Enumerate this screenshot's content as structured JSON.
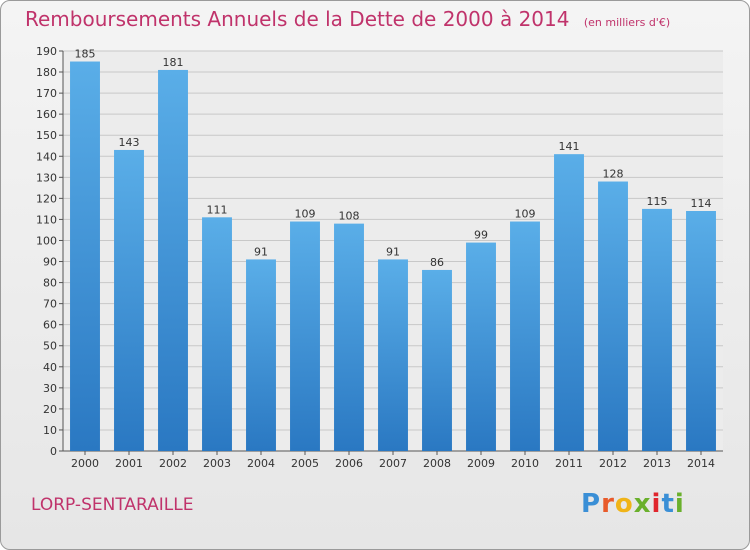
{
  "header": {
    "title": "Remboursements Annuels de la Dette de 2000 à 2014",
    "subtitle": "(en milliers d'€)"
  },
  "footer": {
    "commune": "LORP-SENTARAILLE",
    "logo_letters": [
      "P",
      "r",
      "o",
      "x",
      "i",
      "t",
      "i"
    ],
    "logo_colors": [
      "#3a8fd6",
      "#e85a2a",
      "#f0b418",
      "#6ab02c",
      "#e0262d",
      "#3a8fd6",
      "#6ab02c"
    ]
  },
  "colors": {
    "bar_top": "#5aaee8",
    "bar_bottom": "#2a78c2",
    "grid": "#c8c8c8",
    "title": "#c0336b"
  },
  "chart_data": {
    "type": "bar",
    "title": "Remboursements Annuels de la Dette de 2000 à 2014",
    "xlabel": "",
    "ylabel": "",
    "categories": [
      "2000",
      "2001",
      "2002",
      "2003",
      "2004",
      "2005",
      "2006",
      "2007",
      "2008",
      "2009",
      "2010",
      "2011",
      "2012",
      "2013",
      "2014"
    ],
    "values": [
      185,
      143,
      181,
      111,
      91,
      109,
      108,
      91,
      86,
      99,
      109,
      141,
      128,
      115,
      114
    ],
    "ylim": [
      0,
      190
    ],
    "ytick_step": 10,
    "grid": true
  }
}
